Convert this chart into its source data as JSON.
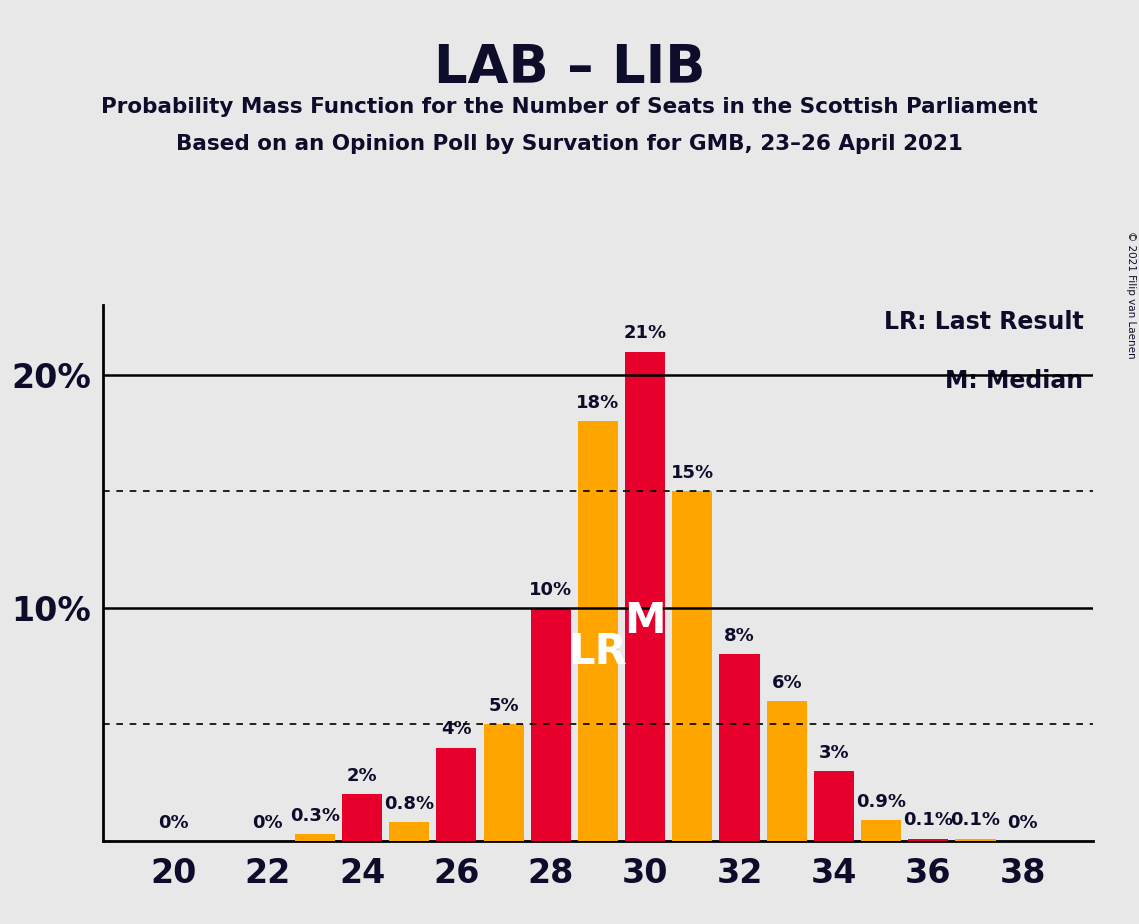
{
  "title": "LAB – LIB",
  "subtitle1": "Probability Mass Function for the Number of Seats in the Scottish Parliament",
  "subtitle2": "Based on an Opinion Poll by Survation for GMB, 23–26 April 2021",
  "copyright": "© 2021 Filip van Laenen",
  "bar_data": [
    {
      "x": 20,
      "val": 0.0,
      "color": "#E8002D",
      "label": "0%",
      "lr": false,
      "median": false
    },
    {
      "x": 22,
      "val": 0.0,
      "color": "#E8002D",
      "label": "0%",
      "lr": false,
      "median": false
    },
    {
      "x": 23,
      "val": 0.3,
      "color": "#FFA500",
      "label": "0.3%",
      "lr": false,
      "median": false
    },
    {
      "x": 24,
      "val": 2.0,
      "color": "#E8002D",
      "label": "2%",
      "lr": false,
      "median": false
    },
    {
      "x": 25,
      "val": 0.8,
      "color": "#FFA500",
      "label": "0.8%",
      "lr": false,
      "median": false
    },
    {
      "x": 26,
      "val": 4.0,
      "color": "#E8002D",
      "label": "4%",
      "lr": false,
      "median": false
    },
    {
      "x": 27,
      "val": 5.0,
      "color": "#FFA500",
      "label": "5%",
      "lr": false,
      "median": false
    },
    {
      "x": 28,
      "val": 10.0,
      "color": "#E8002D",
      "label": "10%",
      "lr": false,
      "median": false
    },
    {
      "x": 29,
      "val": 18.0,
      "color": "#FFA500",
      "label": "18%",
      "lr": true,
      "median": false
    },
    {
      "x": 30,
      "val": 21.0,
      "color": "#E8002D",
      "label": "21%",
      "lr": false,
      "median": true
    },
    {
      "x": 31,
      "val": 15.0,
      "color": "#FFA500",
      "label": "15%",
      "lr": false,
      "median": false
    },
    {
      "x": 32,
      "val": 8.0,
      "color": "#E8002D",
      "label": "8%",
      "lr": false,
      "median": false
    },
    {
      "x": 33,
      "val": 6.0,
      "color": "#FFA500",
      "label": "6%",
      "lr": false,
      "median": false
    },
    {
      "x": 34,
      "val": 3.0,
      "color": "#E8002D",
      "label": "3%",
      "lr": false,
      "median": false
    },
    {
      "x": 35,
      "val": 0.9,
      "color": "#FFA500",
      "label": "0.9%",
      "lr": false,
      "median": false
    },
    {
      "x": 36,
      "val": 0.1,
      "color": "#E8002D",
      "label": "0.1%",
      "lr": false,
      "median": false
    },
    {
      "x": 37,
      "val": 0.1,
      "color": "#FFA500",
      "label": "0.1%",
      "lr": false,
      "median": false
    },
    {
      "x": 38,
      "val": 0.0,
      "color": "#E8002D",
      "label": "0%",
      "lr": false,
      "median": false
    }
  ],
  "red_color": "#E8002D",
  "orange_color": "#FFA500",
  "background_color": "#E8E8E8",
  "text_color": "#0d0d2b",
  "ylim": [
    0,
    23
  ],
  "solid_lines": [
    10,
    20
  ],
  "dotted_lines": [
    5,
    15
  ],
  "xtick_labels": [
    20,
    22,
    24,
    26,
    28,
    30,
    32,
    34,
    36,
    38
  ],
  "ytick_labels": [
    [
      10,
      "10%"
    ],
    [
      20,
      "20%"
    ]
  ],
  "xlim": [
    18.5,
    39.5
  ],
  "legend_lr": "LR: Last Result",
  "legend_m": "M: Median",
  "lr_label": "LR",
  "median_label": "M",
  "bar_width": 0.85
}
